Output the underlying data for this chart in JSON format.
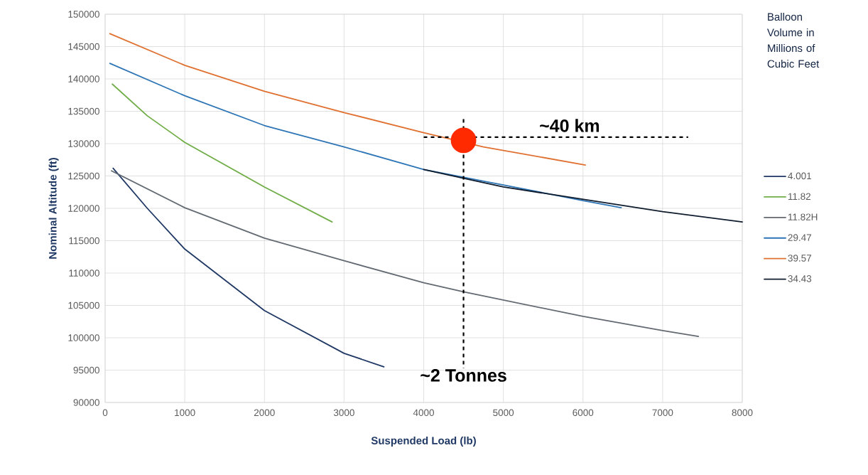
{
  "chart_data": {
    "type": "line",
    "xlabel": "Suspended Load (lb)",
    "ylabel": "Nominal Altitude (ft)",
    "legend_title": "Balloon Volume in Millions of Cubic Feet",
    "xlim": [
      0,
      8000
    ],
    "ylim": [
      90000,
      150000
    ],
    "xticks": [
      0,
      1000,
      2000,
      3000,
      4000,
      5000,
      6000,
      7000,
      8000
    ],
    "yticks": [
      90000,
      95000,
      100000,
      105000,
      110000,
      115000,
      120000,
      125000,
      130000,
      135000,
      140000,
      145000,
      150000
    ],
    "grid": true,
    "legend": "right",
    "marker": "none",
    "line_style": "solid",
    "series": [
      {
        "name": "4.001",
        "color": "#1f3864",
        "x": [
          100,
          530,
          1000,
          2000,
          3000,
          3500
        ],
        "values": [
          126200,
          120000,
          113700,
          104200,
          97600,
          95500
        ]
      },
      {
        "name": "11.82",
        "color": "#70ad47",
        "x": [
          90,
          530,
          1000,
          2000,
          2850
        ],
        "values": [
          139200,
          134300,
          130200,
          123300,
          117900
        ]
      },
      {
        "name": "11.82H",
        "color": "#636a72",
        "x": [
          80,
          1000,
          2000,
          3000,
          4000,
          4500,
          6000,
          7000,
          7450
        ],
        "values": [
          125800,
          120100,
          115400,
          111900,
          108500,
          107100,
          103300,
          101100,
          100200
        ]
      },
      {
        "name": "29.47",
        "color": "#2e75b6",
        "x": [
          60,
          1000,
          2000,
          3000,
          4000,
          5000,
          6000,
          6480
        ],
        "values": [
          142400,
          137400,
          132800,
          129500,
          126000,
          123600,
          121200,
          120100
        ]
      },
      {
        "name": "39.57",
        "color": "#e07030",
        "x": [
          60,
          1000,
          2000,
          3000,
          4000,
          4750,
          6030
        ],
        "values": [
          147000,
          142100,
          138100,
          134800,
          131700,
          129500,
          126700
        ]
      },
      {
        "name": "34.43",
        "color": "#0f1c2e",
        "x": [
          4000,
          5000,
          6000,
          7000,
          8000
        ],
        "values": [
          126000,
          123300,
          121400,
          119500,
          117900
        ]
      },
      {
        "type": "scatter",
        "marker": "circle",
        "color": "#ff2a00",
        "x": [
          4500
        ],
        "values": [
          130500
        ]
      }
    ],
    "ref_lines": [
      {
        "axis": "y",
        "value": 131000,
        "label": "~40 km",
        "line_style": "dashed",
        "color": "#000000"
      },
      {
        "axis": "x",
        "value": 4500,
        "label": "~2 Tonnes",
        "line_style": "dashed",
        "color": "#000000"
      }
    ]
  }
}
